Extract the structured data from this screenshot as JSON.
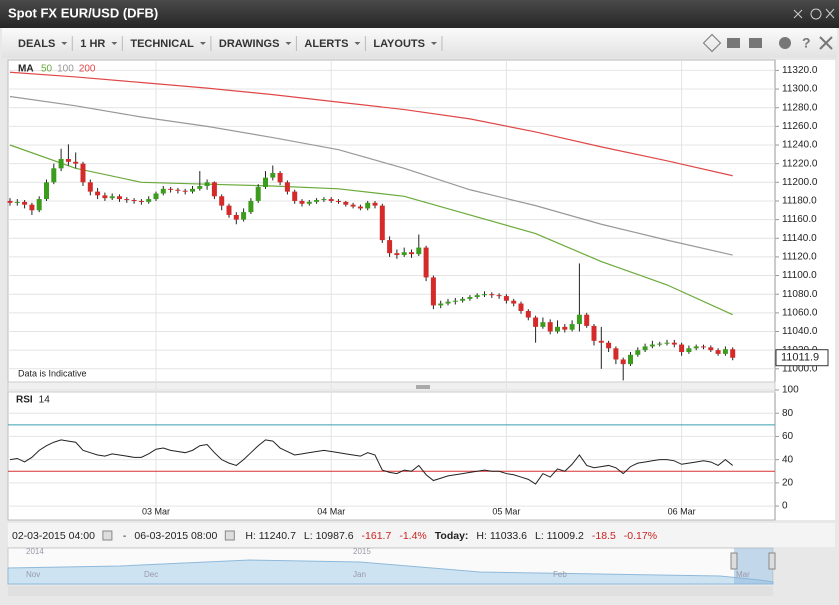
{
  "window": {
    "title": "Spot FX EUR/USD (DFB)"
  },
  "toolbar": {
    "items": [
      "DEALS",
      "1 HR",
      "TECHNICAL",
      "DRAWINGS",
      "ALERTS",
      "LAYOUTS"
    ]
  },
  "chart_data": [
    {
      "type": "candlestick",
      "legend_title": "MA",
      "note": "Data is Indicative",
      "last_price": {
        "value": 11011.9,
        "label": "11011.9"
      },
      "up_color": "#3c9c1e",
      "down_color": "#d42a2a",
      "doji_color": "#222",
      "categories_labels": [
        {
          "index": 20,
          "label": "03 Mar"
        },
        {
          "index": 44,
          "label": "04 Mar"
        },
        {
          "index": 68,
          "label": "05 Mar"
        },
        {
          "index": 92,
          "label": "06 Mar"
        }
      ],
      "candles": [
        [
          11180,
          11183,
          11175,
          11178
        ],
        [
          11178,
          11182,
          11175,
          11179
        ],
        [
          11179,
          11181,
          11172,
          11176
        ],
        [
          11176,
          11178,
          11165,
          11170
        ],
        [
          11170,
          11185,
          11168,
          11182
        ],
        [
          11182,
          11203,
          11180,
          11200
        ],
        [
          11200,
          11220,
          11198,
          11215
        ],
        [
          11215,
          11236,
          11212,
          11225
        ],
        [
          11225,
          11240.7,
          11218,
          11222
        ],
        [
          11222,
          11232,
          11215,
          11220
        ],
        [
          11220,
          11222,
          11196,
          11200
        ],
        [
          11200,
          11203,
          11186,
          11190
        ],
        [
          11190,
          11194,
          11182,
          11186
        ],
        [
          11186,
          11189,
          11180,
          11183
        ],
        [
          11183,
          11188,
          11181,
          11185
        ],
        [
          11185,
          11187,
          11179,
          11182
        ],
        [
          11182,
          11184,
          11178,
          11181
        ],
        [
          11181,
          11183,
          11177,
          11180
        ],
        [
          11180,
          11182,
          11176,
          11179
        ],
        [
          11179,
          11185,
          11177,
          11182
        ],
        [
          11182,
          11190,
          11180,
          11188
        ],
        [
          11188,
          11196,
          11186,
          11193
        ],
        [
          11193,
          11195,
          11189,
          11192
        ],
        [
          11192,
          11194,
          11188,
          11191
        ],
        [
          11191,
          11193,
          11187,
          11190
        ],
        [
          11190,
          11196,
          11188,
          11193
        ],
        [
          11193,
          11212,
          11191,
          11196
        ],
        [
          11196,
          11203,
          11192,
          11200
        ],
        [
          11200,
          11201,
          11182,
          11185
        ],
        [
          11185,
          11187,
          11170,
          11175
        ],
        [
          11175,
          11177,
          11162,
          11165
        ],
        [
          11165,
          11168,
          11155,
          11160
        ],
        [
          11160,
          11172,
          11158,
          11168
        ],
        [
          11168,
          11183,
          11166,
          11180
        ],
        [
          11180,
          11198,
          11178,
          11195
        ],
        [
          11195,
          11212,
          11193,
          11205
        ],
        [
          11205,
          11218,
          11202,
          11210
        ],
        [
          11210,
          11212,
          11197,
          11200
        ],
        [
          11200,
          11202,
          11187,
          11190
        ],
        [
          11190,
          11192,
          11177,
          11180
        ],
        [
          11180,
          11182,
          11174,
          11177
        ],
        [
          11177,
          11181,
          11175,
          11179
        ],
        [
          11179,
          11183,
          11177,
          11181
        ],
        [
          11181,
          11184,
          11179,
          11182
        ],
        [
          11182,
          11184,
          11178,
          11180
        ],
        [
          11180,
          11182,
          11177,
          11179
        ],
        [
          11179,
          11180,
          11174,
          11176
        ],
        [
          11176,
          11178,
          11172,
          11174
        ],
        [
          11174,
          11176,
          11170,
          11172
        ],
        [
          11172,
          11180,
          11170,
          11178
        ],
        [
          11178,
          11180,
          11172,
          11175
        ],
        [
          11175,
          11177,
          11135,
          11138
        ],
        [
          11138,
          11142,
          11120,
          11124
        ],
        [
          11124,
          11128,
          11118,
          11122
        ],
        [
          11122,
          11130,
          11120,
          11125
        ],
        [
          11125,
          11128,
          11119,
          11123
        ],
        [
          11123,
          11144,
          11121,
          11130
        ],
        [
          11130,
          11132,
          11094,
          11098
        ],
        [
          11098,
          11100,
          11064,
          11068
        ],
        [
          11068,
          11073,
          11065,
          11070
        ],
        [
          11070,
          11075,
          11068,
          11072
        ],
        [
          11072,
          11076,
          11069,
          11073
        ],
        [
          11073,
          11077,
          11071,
          11075
        ],
        [
          11075,
          11079,
          11073,
          11077
        ],
        [
          11077,
          11081,
          11075,
          11079
        ],
        [
          11079,
          11083,
          11077,
          11080
        ],
        [
          11080,
          11082,
          11076,
          11079
        ],
        [
          11079,
          11081,
          11075,
          11078
        ],
        [
          11078,
          11080,
          11070,
          11073
        ],
        [
          11073,
          11075,
          11067,
          11070
        ],
        [
          11070,
          11072,
          11059,
          11062
        ],
        [
          11062,
          11064,
          11052,
          11055
        ],
        [
          11055,
          11057,
          11028,
          11045
        ],
        [
          11045,
          11055,
          11043,
          11050
        ],
        [
          11050,
          11053,
          11037,
          11040
        ],
        [
          11040,
          11052,
          11038,
          11045
        ],
        [
          11045,
          11048,
          11039,
          11042
        ],
        [
          11042,
          11052,
          11040,
          11048
        ],
        [
          11048,
          11113,
          11040,
          11058
        ],
        [
          11058,
          11060,
          11044,
          11046
        ],
        [
          11046,
          11048,
          11025,
          11030
        ],
        [
          11030,
          11045,
          11000,
          11028
        ],
        [
          11028,
          11030,
          11018,
          11022
        ],
        [
          11022,
          11024,
          11005,
          11010
        ],
        [
          11010,
          11012,
          10987.6,
          11005
        ],
        [
          11005,
          11018,
          11003,
          11015
        ],
        [
          11015,
          11023,
          11013,
          11020
        ],
        [
          11020,
          11027,
          11018,
          11024
        ],
        [
          11024,
          11030,
          11022,
          11026
        ],
        [
          11026,
          11029,
          11024,
          11027
        ],
        [
          11027,
          11031,
          11025,
          11028
        ],
        [
          11028,
          11031,
          11023,
          11026
        ],
        [
          11026,
          11028,
          11014,
          11018
        ],
        [
          11018,
          11025,
          11016,
          11022
        ],
        [
          11022,
          11026,
          11020,
          11024
        ],
        [
          11024,
          11026,
          11021,
          11023
        ],
        [
          11023,
          11025,
          11018,
          11020
        ],
        [
          11020,
          11022,
          11014,
          11016
        ],
        [
          11016,
          11024,
          11014,
          11021
        ],
        [
          11021,
          11023,
          11009.2,
          11011.9
        ]
      ],
      "series": [
        {
          "name": "50",
          "color": "#6aaa3a",
          "x": [
            0,
            9,
            18,
            27,
            36,
            45,
            54,
            63,
            72,
            81,
            90,
            99
          ],
          "values": [
            11240,
            11215,
            11200,
            11198,
            11196,
            11193,
            11185,
            11165,
            11145,
            11115,
            11090,
            11058
          ]
        },
        {
          "name": "100",
          "color": "#999999",
          "x": [
            0,
            9,
            18,
            27,
            36,
            45,
            54,
            63,
            72,
            81,
            90,
            99
          ],
          "values": [
            11292,
            11282,
            11270,
            11260,
            11248,
            11235,
            11215,
            11192,
            11175,
            11155,
            11138,
            11122
          ]
        },
        {
          "name": "200",
          "color": "#e04848",
          "x": [
            0,
            9,
            18,
            27,
            36,
            45,
            54,
            63,
            72,
            81,
            90,
            99
          ],
          "values": [
            11318,
            11313,
            11307,
            11301,
            11294,
            11286,
            11278,
            11268,
            11254,
            11238,
            11223,
            11207
          ]
        }
      ],
      "ylim": [
        10988,
        11329
      ],
      "yticks": [
        {
          "value": 11000,
          "label": "11000.0"
        },
        {
          "value": 11020,
          "label": "11020.0"
        },
        {
          "value": 11040,
          "label": "11040.0"
        },
        {
          "value": 11060,
          "label": "11060.0"
        },
        {
          "value": 11080,
          "label": "11080.0"
        },
        {
          "value": 11100,
          "label": "11100.0"
        },
        {
          "value": 11120,
          "label": "11120.0"
        },
        {
          "value": 11140,
          "label": "11140.0"
        },
        {
          "value": 11160,
          "label": "11160.0"
        },
        {
          "value": 11180,
          "label": "11180.0"
        },
        {
          "value": 11200,
          "label": "11200.0"
        },
        {
          "value": 11220,
          "label": "11220.0"
        },
        {
          "value": 11240,
          "label": "11240.0"
        },
        {
          "value": 11260,
          "label": "11260.0"
        },
        {
          "value": 11280,
          "label": "11280.0"
        },
        {
          "value": 11300,
          "label": "11300.0"
        },
        {
          "value": 11320,
          "label": "11320.0"
        }
      ],
      "grid": true
    },
    {
      "type": "line",
      "title": "RSI",
      "period": "14",
      "color": "#222222",
      "values": [
        40,
        41,
        38,
        42,
        48,
        52,
        55,
        57,
        56,
        55,
        48,
        46,
        44,
        43,
        45,
        44,
        43,
        42,
        42,
        45,
        49,
        50,
        48,
        47,
        46,
        48,
        52,
        53,
        46,
        40,
        37,
        35,
        40,
        46,
        52,
        57,
        56,
        50,
        47,
        44,
        45,
        46,
        47,
        48,
        47,
        46,
        45,
        44,
        43,
        46,
        44,
        31,
        29,
        28,
        31,
        30,
        35,
        27,
        22,
        24,
        26,
        27,
        28,
        29,
        30,
        31,
        30,
        30,
        28,
        27,
        25,
        23,
        19,
        28,
        25,
        32,
        30,
        36,
        44,
        35,
        33,
        34,
        35,
        33,
        28,
        34,
        37,
        38,
        39,
        40,
        40,
        39,
        36,
        37,
        38,
        39,
        38,
        35,
        40,
        35
      ],
      "levels": [
        {
          "value": 70,
          "color": "#3a9fb0"
        },
        {
          "value": 30,
          "color": "#d83030"
        }
      ],
      "ylim": [
        -12,
        100
      ],
      "yticks": [
        0,
        20,
        40,
        60,
        80,
        100
      ],
      "grid": true
    }
  ],
  "footer": {
    "from": "02-03-2015 04:00",
    "dash": "-",
    "to": "06-03-2015 08:00",
    "high": "H: 11240.7",
    "low": "L: 10987.6",
    "change": "-161.7",
    "change_pct": "-1.4%",
    "today": "Today:",
    "today_high": "H: 11033.6",
    "today_low": "L: 11009.2",
    "today_change": "-18.5",
    "today_change_pct": "-0.17%"
  },
  "navigator": {
    "labels": [
      "2014",
      "Nov",
      "Dec",
      "2015",
      "Jan",
      "Feb",
      "Mar"
    ]
  }
}
